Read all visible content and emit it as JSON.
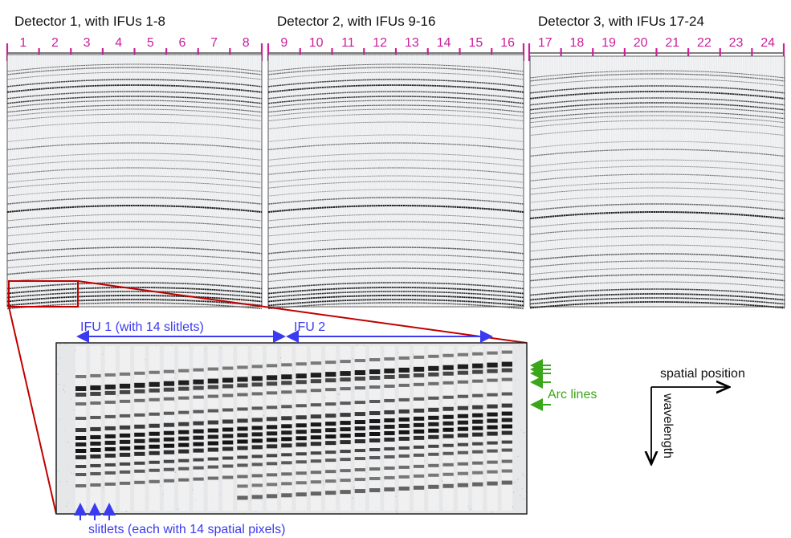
{
  "detectors": [
    {
      "title": "Detector 1, with IFUs 1-8",
      "ifus": [
        "1",
        "2",
        "3",
        "4",
        "5",
        "6",
        "7",
        "8"
      ]
    },
    {
      "title": "Detector 2, with IFUs 9-16",
      "ifus": [
        "9",
        "10",
        "11",
        "12",
        "13",
        "14",
        "15",
        "16"
      ]
    },
    {
      "title": "Detector 3, with IFUs 17-24",
      "ifus": [
        "17",
        "18",
        "19",
        "20",
        "21",
        "22",
        "23",
        "24"
      ]
    }
  ],
  "zoom": {
    "ifu1_label": "IFU 1 (with 14 slitlets)",
    "ifu2_label": "IFU 2",
    "arc_lines_label": "Arc lines",
    "slitlets_label": "slitlets (each with 14 spatial pixels)"
  },
  "axes": {
    "spatial_label": "spatial position",
    "wavelength_label": "wavelength"
  },
  "colors": {
    "tick": "#cc1f9c",
    "zoom_box": "#c00000",
    "ifu_arrow": "#3a3aef",
    "arc_arrow": "#3aa61a",
    "text": "#111111"
  }
}
